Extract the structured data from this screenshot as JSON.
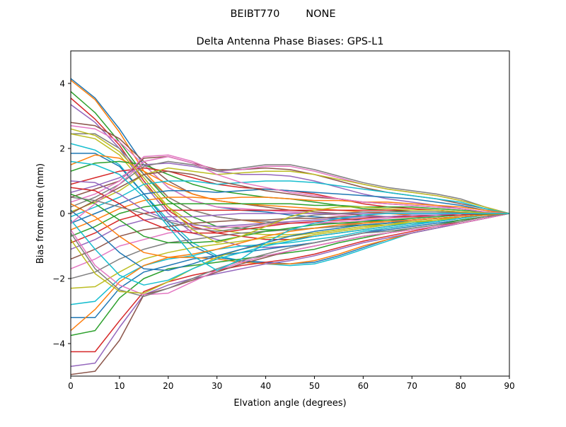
{
  "figure": {
    "suptitle": "BEIBT770        NONE"
  },
  "chart_data": {
    "type": "line",
    "title": "Delta Antenna Phase Biases: GPS-L1",
    "xlabel": "Elvation angle (degrees)",
    "ylabel": "Bias from mean (mm)",
    "xlim": [
      0,
      90
    ],
    "ylim": [
      -5,
      5
    ],
    "xticks": [
      0,
      10,
      20,
      30,
      40,
      50,
      60,
      70,
      80,
      90
    ],
    "yticks": [
      -4,
      -2,
      0,
      2,
      4
    ],
    "xtick_labels": [
      "0",
      "10",
      "20",
      "30",
      "40",
      "50",
      "60",
      "70",
      "80",
      "90"
    ],
    "ytick_labels": [
      "−4",
      "−2",
      "0",
      "2",
      "4"
    ],
    "grid": false,
    "legend": "none",
    "x": [
      0,
      5,
      10,
      15,
      20,
      25,
      30,
      35,
      40,
      45,
      50,
      55,
      60,
      65,
      70,
      75,
      80,
      85,
      90
    ],
    "colors": [
      "#1f77b4",
      "#ff7f0e",
      "#2ca02c",
      "#d62728",
      "#9467bd",
      "#8c564b",
      "#e377c2",
      "#7f7f7f",
      "#bcbd22",
      "#17becf"
    ],
    "series": [
      {
        "values": [
          4.15,
          3.55,
          2.6,
          1.5,
          0.8,
          0.4,
          0.2,
          0.1,
          0.05,
          -0.05,
          -0.1,
          -0.15,
          -0.2,
          -0.2,
          -0.2,
          -0.15,
          -0.1,
          -0.05,
          0
        ]
      },
      {
        "values": [
          4.1,
          3.5,
          2.5,
          1.3,
          0.5,
          0.1,
          -0.1,
          -0.2,
          -0.3,
          -0.3,
          -0.3,
          -0.3,
          -0.25,
          -0.25,
          -0.2,
          -0.15,
          -0.1,
          -0.05,
          0
        ]
      },
      {
        "values": [
          3.75,
          3.1,
          2.2,
          1.2,
          0.4,
          -0.1,
          -0.4,
          -0.45,
          -0.5,
          -0.5,
          -0.45,
          -0.4,
          -0.35,
          -0.3,
          -0.25,
          -0.2,
          -0.15,
          -0.05,
          0
        ]
      },
      {
        "values": [
          3.55,
          2.9,
          2.1,
          1.0,
          0.1,
          -0.4,
          -0.6,
          -0.7,
          -0.8,
          -0.8,
          -0.7,
          -0.6,
          -0.5,
          -0.4,
          -0.3,
          -0.25,
          -0.15,
          -0.05,
          0
        ]
      },
      {
        "values": [
          3.35,
          2.8,
          2.0,
          0.9,
          0.0,
          -0.6,
          -0.8,
          -1.0,
          -1.05,
          -1.0,
          -0.9,
          -0.75,
          -0.6,
          -0.45,
          -0.35,
          -0.25,
          -0.15,
          -0.05,
          0
        ]
      },
      {
        "values": [
          2.8,
          2.7,
          2.3,
          1.6,
          1.0,
          0.6,
          0.4,
          0.3,
          0.2,
          0.1,
          0.05,
          0,
          -0.05,
          -0.1,
          -0.1,
          -0.1,
          -0.05,
          0,
          0
        ]
      },
      {
        "values": [
          2.7,
          2.6,
          2.2,
          1.5,
          0.8,
          0.4,
          0.2,
          0.15,
          0.1,
          0.05,
          0,
          -0.05,
          -0.1,
          -0.1,
          -0.1,
          -0.05,
          -0.05,
          0,
          0
        ]
      },
      {
        "values": [
          2.45,
          2.45,
          2.0,
          1.2,
          0.5,
          0.1,
          -0.1,
          -0.2,
          -0.25,
          -0.3,
          -0.3,
          -0.3,
          -0.3,
          -0.25,
          -0.2,
          -0.15,
          -0.1,
          -0.05,
          0
        ]
      },
      {
        "values": [
          2.45,
          2.3,
          1.8,
          0.9,
          0.2,
          -0.3,
          -0.5,
          -0.6,
          -0.65,
          -0.65,
          -0.6,
          -0.5,
          -0.4,
          -0.35,
          -0.25,
          -0.2,
          -0.1,
          -0.05,
          0
        ]
      },
      {
        "values": [
          2.15,
          1.95,
          1.5,
          0.6,
          -0.2,
          -0.9,
          -1.3,
          -1.45,
          -1.55,
          -1.6,
          -1.55,
          -1.35,
          -1.1,
          -0.85,
          -0.6,
          -0.45,
          -0.3,
          -0.15,
          0
        ]
      },
      {
        "values": [
          1.85,
          1.85,
          1.45,
          0.6,
          -0.3,
          -1.0,
          -1.35,
          -1.45,
          -1.5,
          -1.55,
          -1.5,
          -1.3,
          -1.05,
          -0.8,
          -0.6,
          -0.45,
          -0.3,
          -0.15,
          0
        ]
      },
      {
        "values": [
          1.5,
          1.8,
          1.7,
          1.3,
          0.9,
          0.6,
          0.4,
          0.3,
          0.25,
          0.2,
          0.15,
          0.1,
          0.05,
          0,
          -0.05,
          -0.05,
          -0.05,
          0,
          0
        ]
      },
      {
        "values": [
          1.3,
          1.55,
          1.6,
          1.5,
          1.2,
          0.9,
          0.7,
          0.6,
          0.5,
          0.45,
          0.35,
          0.25,
          0.15,
          0.1,
          0.05,
          0.05,
          0.03,
          0.01,
          0
        ]
      },
      {
        "values": [
          0.9,
          1.1,
          1.3,
          1.4,
          1.3,
          1.1,
          0.9,
          0.8,
          0.75,
          0.7,
          0.6,
          0.45,
          0.3,
          0.2,
          0.15,
          0.1,
          0.05,
          0.02,
          0
        ]
      },
      {
        "values": [
          0.65,
          0.85,
          1.1,
          1.5,
          1.55,
          1.45,
          1.3,
          1.2,
          1.2,
          1.15,
          1.0,
          0.8,
          0.6,
          0.45,
          0.35,
          0.25,
          0.15,
          0.05,
          0
        ]
      },
      {
        "values": [
          0.5,
          0.75,
          1.0,
          1.7,
          1.75,
          1.55,
          1.35,
          1.35,
          1.4,
          1.35,
          1.2,
          1.0,
          0.8,
          0.65,
          0.55,
          0.45,
          0.3,
          0.15,
          0
        ]
      },
      {
        "values": [
          0.35,
          0.6,
          1.0,
          1.75,
          1.8,
          1.6,
          1.3,
          1.35,
          1.45,
          1.45,
          1.3,
          1.1,
          0.9,
          0.75,
          0.65,
          0.55,
          0.4,
          0.2,
          0
        ]
      },
      {
        "values": [
          0.2,
          0.5,
          0.9,
          1.45,
          1.6,
          1.5,
          1.3,
          1.4,
          1.5,
          1.5,
          1.35,
          1.15,
          0.95,
          0.8,
          0.7,
          0.6,
          0.45,
          0.2,
          0
        ]
      },
      {
        "values": [
          0.05,
          0.35,
          0.7,
          1.2,
          1.4,
          1.3,
          1.2,
          1.25,
          1.3,
          1.3,
          1.2,
          1.05,
          0.9,
          0.75,
          0.65,
          0.55,
          0.4,
          0.2,
          0
        ]
      },
      {
        "values": [
          -0.1,
          0.2,
          0.5,
          0.9,
          1.0,
          1.0,
          0.9,
          0.95,
          1.0,
          1.0,
          0.95,
          0.85,
          0.75,
          0.65,
          0.55,
          0.45,
          0.35,
          0.15,
          0
        ]
      },
      {
        "values": [
          -0.3,
          0.0,
          0.3,
          0.6,
          0.7,
          0.7,
          0.65,
          0.7,
          0.75,
          0.7,
          0.65,
          0.6,
          0.55,
          0.5,
          0.45,
          0.35,
          0.25,
          0.1,
          0
        ]
      },
      {
        "values": [
          -0.5,
          -0.2,
          0.15,
          0.4,
          0.5,
          0.5,
          0.45,
          0.5,
          0.5,
          0.45,
          0.4,
          0.4,
          0.35,
          0.35,
          0.3,
          0.25,
          0.2,
          0.1,
          0
        ]
      },
      {
        "values": [
          -0.7,
          -0.4,
          0.0,
          0.2,
          0.3,
          0.3,
          0.3,
          0.3,
          0.3,
          0.3,
          0.25,
          0.25,
          0.2,
          0.2,
          0.2,
          0.15,
          0.1,
          0.05,
          0
        ]
      },
      {
        "values": [
          -0.9,
          -0.6,
          -0.2,
          0.0,
          0.1,
          0.1,
          0.1,
          0.1,
          0.1,
          0.1,
          0.1,
          0.1,
          0.1,
          0.1,
          0.1,
          0.1,
          0.05,
          0.02,
          0
        ]
      },
      {
        "values": [
          -1.1,
          -0.8,
          -0.4,
          -0.2,
          -0.1,
          -0.1,
          -0.05,
          0.0,
          0.0,
          0.0,
          0.0,
          0.0,
          0.0,
          0.0,
          0.0,
          0.0,
          0.0,
          0.0,
          0
        ]
      },
      {
        "values": [
          -1.4,
          -1.1,
          -0.7,
          -0.5,
          -0.4,
          -0.3,
          -0.25,
          -0.2,
          -0.2,
          -0.15,
          -0.15,
          -0.1,
          -0.1,
          -0.1,
          -0.05,
          -0.05,
          -0.05,
          0,
          0
        ]
      },
      {
        "values": [
          -1.7,
          -1.4,
          -1.0,
          -0.8,
          -0.6,
          -0.5,
          -0.45,
          -0.4,
          -0.35,
          -0.3,
          -0.3,
          -0.25,
          -0.2,
          -0.15,
          -0.1,
          -0.1,
          -0.05,
          0,
          0
        ]
      },
      {
        "values": [
          -2.0,
          -1.8,
          -1.4,
          -1.1,
          -0.9,
          -0.8,
          -0.7,
          -0.6,
          -0.55,
          -0.5,
          -0.45,
          -0.4,
          -0.3,
          -0.25,
          -0.2,
          -0.15,
          -0.1,
          -0.05,
          0
        ]
      },
      {
        "values": [
          -2.3,
          -2.25,
          -1.8,
          -1.4,
          -1.2,
          -1.05,
          -0.95,
          -0.85,
          -0.75,
          -0.7,
          -0.6,
          -0.5,
          -0.4,
          -0.3,
          -0.25,
          -0.2,
          -0.1,
          -0.05,
          0
        ]
      },
      {
        "values": [
          -2.8,
          -2.7,
          -2.0,
          -1.6,
          -1.4,
          -1.3,
          -1.1,
          -1.0,
          -0.95,
          -0.9,
          -0.8,
          -0.7,
          -0.55,
          -0.45,
          -0.35,
          -0.25,
          -0.15,
          -0.05,
          0
        ]
      },
      {
        "values": [
          -3.2,
          -3.2,
          -2.3,
          -1.8,
          -1.6,
          -1.4,
          -1.3,
          -1.2,
          -1.1,
          -1.0,
          -0.9,
          -0.75,
          -0.6,
          -0.5,
          -0.4,
          -0.3,
          -0.2,
          -0.1,
          0
        ]
      },
      {
        "values": [
          -3.6,
          -2.95,
          -2.1,
          -1.6,
          -1.35,
          -1.35,
          -1.4,
          -1.5,
          -1.55,
          -1.55,
          -1.45,
          -1.25,
          -1.0,
          -0.8,
          -0.6,
          -0.45,
          -0.3,
          -0.15,
          0
        ]
      },
      {
        "values": [
          -3.75,
          -3.6,
          -2.6,
          -2.0,
          -1.7,
          -1.6,
          -1.5,
          -1.4,
          -1.3,
          -1.2,
          -1.1,
          -0.9,
          -0.75,
          -0.6,
          -0.45,
          -0.35,
          -0.2,
          -0.1,
          0
        ]
      },
      {
        "values": [
          -4.25,
          -4.25,
          -3.3,
          -2.4,
          -2.1,
          -1.9,
          -1.75,
          -1.6,
          -1.5,
          -1.4,
          -1.25,
          -1.05,
          -0.85,
          -0.7,
          -0.55,
          -0.4,
          -0.25,
          -0.1,
          0
        ]
      },
      {
        "values": [
          -4.7,
          -4.6,
          -3.5,
          -2.5,
          -2.2,
          -2.0,
          -1.85,
          -1.7,
          -1.55,
          -1.45,
          -1.3,
          -1.1,
          -0.9,
          -0.75,
          -0.6,
          -0.45,
          -0.3,
          -0.15,
          0
        ]
      },
      {
        "values": [
          -4.95,
          -4.85,
          -3.9,
          -2.5,
          -2.3,
          -2.05,
          -1.8,
          -1.55,
          -1.35,
          -1.15,
          -1.0,
          -0.85,
          -0.7,
          -0.6,
          -0.5,
          -0.4,
          -0.3,
          -0.15,
          0
        ]
      },
      {
        "values": [
          -0.5,
          -1.6,
          -2.2,
          -2.5,
          -2.45,
          -2.1,
          -1.75,
          -1.5,
          -1.3,
          -1.15,
          -1.0,
          -0.85,
          -0.7,
          -0.6,
          -0.5,
          -0.4,
          -0.3,
          -0.15,
          0
        ]
      },
      {
        "values": [
          -0.6,
          -1.7,
          -2.35,
          -2.55,
          -2.3,
          -2.0,
          -1.7,
          -1.45,
          -1.25,
          -1.05,
          -0.9,
          -0.75,
          -0.6,
          -0.55,
          -0.45,
          -0.35,
          -0.25,
          -0.1,
          0
        ]
      },
      {
        "values": [
          -0.8,
          -1.85,
          -2.4,
          -2.45,
          -2.1,
          -1.7,
          -1.35,
          -1.1,
          -0.95,
          -0.8,
          -0.65,
          -0.55,
          -0.45,
          -0.35,
          -0.3,
          -0.2,
          -0.15,
          -0.05,
          0
        ]
      },
      {
        "values": [
          -0.2,
          -1.1,
          -1.9,
          -2.2,
          -2.05,
          -1.7,
          -1.4,
          -1.2,
          -1.0,
          -0.85,
          -0.7,
          -0.6,
          -0.5,
          -0.4,
          -0.3,
          -0.25,
          -0.15,
          -0.05,
          0
        ]
      },
      {
        "values": [
          0.1,
          -0.5,
          -1.2,
          -1.7,
          -1.75,
          -1.55,
          -1.3,
          -1.1,
          -0.9,
          -0.7,
          -0.55,
          -0.45,
          -0.35,
          -0.3,
          -0.2,
          -0.15,
          -0.1,
          -0.05,
          0
        ]
      },
      {
        "values": [
          0.3,
          -0.1,
          -0.7,
          -1.2,
          -1.35,
          -1.25,
          -1.1,
          -0.9,
          -0.7,
          -0.55,
          -0.45,
          -0.35,
          -0.3,
          -0.25,
          -0.2,
          -0.15,
          -0.1,
          -0.05,
          0
        ]
      },
      {
        "values": [
          0.6,
          0.3,
          -0.2,
          -0.7,
          -0.9,
          -0.9,
          -0.85,
          -0.7,
          -0.55,
          -0.45,
          -0.35,
          -0.3,
          -0.25,
          -0.2,
          -0.15,
          -0.1,
          -0.05,
          -0.02,
          0
        ]
      },
      {
        "values": [
          0.8,
          0.7,
          0.3,
          -0.2,
          -0.5,
          -0.6,
          -0.6,
          -0.5,
          -0.4,
          -0.3,
          -0.25,
          -0.2,
          -0.15,
          -0.1,
          -0.1,
          -0.05,
          -0.05,
          0,
          0
        ]
      },
      {
        "values": [
          1.0,
          0.95,
          0.6,
          0.1,
          -0.2,
          -0.35,
          -0.4,
          -0.35,
          -0.3,
          -0.25,
          -0.2,
          -0.15,
          -0.1,
          -0.1,
          -0.05,
          -0.05,
          0,
          0,
          0
        ]
      },
      {
        "values": [
          0.0,
          0.4,
          0.8,
          1.2,
          1.3,
          1.2,
          1.0,
          0.85,
          0.7,
          0.6,
          0.5,
          0.45,
          0.35,
          0.3,
          0.25,
          0.2,
          0.15,
          0.05,
          0
        ]
      },
      {
        "values": [
          -0.3,
          0.3,
          0.9,
          1.6,
          1.75,
          1.55,
          1.2,
          0.95,
          0.8,
          0.65,
          0.55,
          0.45,
          0.35,
          0.3,
          0.25,
          0.2,
          0.15,
          0.05,
          0
        ]
      },
      {
        "values": [
          0.5,
          0.4,
          0.2,
          0.0,
          -0.25,
          -0.45,
          -0.55,
          -0.45,
          -0.3,
          -0.15,
          -0.05,
          0.0,
          0.05,
          0.05,
          0.05,
          0.05,
          0.02,
          0.01,
          0
        ]
      },
      {
        "values": [
          2.6,
          2.4,
          1.9,
          1.1,
          0.2,
          -0.5,
          -0.9,
          -0.7,
          -0.4,
          -0.1,
          0.1,
          0.2,
          0.2,
          0.15,
          0.1,
          0.1,
          0.05,
          0.02,
          0
        ]
      },
      {
        "values": [
          1.6,
          1.5,
          1.2,
          0.5,
          -0.4,
          -1.3,
          -1.75,
          -1.4,
          -0.9,
          -0.5,
          -0.3,
          -0.15,
          -0.05,
          0.0,
          0.0,
          0.0,
          0.0,
          0.0,
          0
        ]
      }
    ]
  }
}
